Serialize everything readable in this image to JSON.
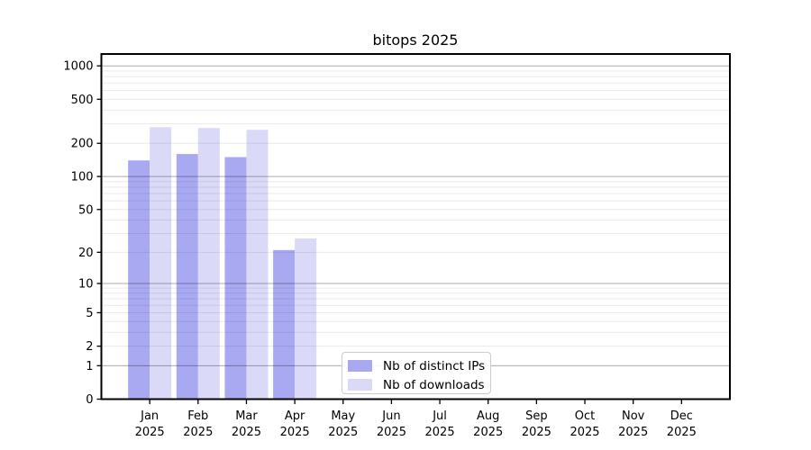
{
  "chart_data": {
    "type": "bar",
    "title": "bitops 2025",
    "categories": [
      "Jan 2025",
      "Feb 2025",
      "Mar 2025",
      "Apr 2025",
      "May 2025",
      "Jun 2025",
      "Jul 2025",
      "Aug 2025",
      "Sep 2025",
      "Oct 2025",
      "Nov 2025",
      "Dec 2025"
    ],
    "series": [
      {
        "name": "Nb of distinct IPs",
        "color": "#a9a9f2",
        "values": [
          140,
          160,
          150,
          21,
          0,
          0,
          0,
          0,
          0,
          0,
          0,
          0
        ]
      },
      {
        "name": "Nb of downloads",
        "color": "#dadaf8",
        "values": [
          280,
          275,
          265,
          27,
          0,
          0,
          0,
          0,
          0,
          0,
          0,
          0
        ]
      }
    ],
    "yscale": "log1p",
    "ylim": [
      0,
      1270
    ],
    "yticks": [
      0,
      1,
      2,
      5,
      10,
      20,
      50,
      100,
      200,
      500,
      1000
    ],
    "major_gridlines": [
      1,
      10,
      100,
      1000
    ],
    "grid": {
      "major_color": "rgba(0,0,0,0.33)",
      "minor_color": "rgba(0,0,0,0.085)"
    },
    "legend_position": "lower center"
  },
  "colors": {
    "background": "#ffffff",
    "spine": "#000000",
    "tick_text": "#000000"
  }
}
